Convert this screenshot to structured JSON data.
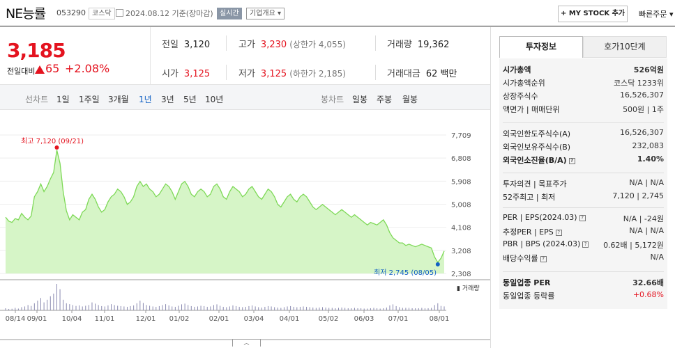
{
  "header": {
    "name": "NE능률",
    "code": "053290",
    "market_tag": "코스닥",
    "date": "2024.08.12",
    "basis": "기준(장마감)",
    "realtime_label": "실시간",
    "company_btn": "기업개요",
    "mystock_btn": "+ MY STOCK 추가",
    "quick_order": "빠른주문"
  },
  "price": {
    "current": "3,185",
    "change_label": "전일대비",
    "change": "65",
    "change_pct": "+2.08%"
  },
  "summary": {
    "prev_label": "전일",
    "prev": "3,120",
    "high_label": "고가",
    "high": "3,230",
    "upper_limit": "(상한가 4,055)",
    "vol_label": "거래량",
    "vol": "19,362",
    "open_label": "시가",
    "open": "3,125",
    "low_label": "저가",
    "low": "3,125",
    "lower_limit": "(하한가 2,185)",
    "amt_label": "거래대금",
    "amt": "62 백만"
  },
  "periods": {
    "line_label": "선차트",
    "line": [
      "1일",
      "1주일",
      "3개월",
      "1년",
      "3년",
      "5년",
      "10년"
    ],
    "active": "1년",
    "candle_label": "봉차트",
    "candle": [
      "일봉",
      "주봉",
      "월봉"
    ]
  },
  "colors": {
    "red": "#e4131f",
    "blue": "#1261c4",
    "chart_line": "#7ed957",
    "chart_fill": "#d6f5c7"
  },
  "chart_data": {
    "type": "area",
    "ylim": [
      2308,
      7709
    ],
    "yticks": [
      "7,709",
      "6,808",
      "5,908",
      "5,008",
      "4,108",
      "3,208",
      "2,308"
    ],
    "xticks": [
      "08/14",
      "09/01",
      "10/04",
      "11/01",
      "12/01",
      "01/02",
      "02/01",
      "03/04",
      "04/01",
      "05/02",
      "06/03",
      "07/01",
      "08/01"
    ],
    "max_label": "최고 7,120 (09/21)",
    "min_label": "최저 2,745 (08/05)",
    "volume_label": "거래량",
    "series": [
      {
        "values": [
          4500,
          4350,
          4300,
          4450,
          4400,
          4650,
          4500,
          4400,
          4550,
          5300,
          5500,
          5800,
          5500,
          5700,
          6000,
          6250,
          7120,
          6600,
          5500,
          4750,
          4400,
          4600,
          4500,
          4400,
          4700,
          4800,
          5200,
          5400,
          5200,
          4900,
          4700,
          4800,
          5100,
          5300,
          5400,
          5600,
          5500,
          5300,
          5000,
          5100,
          5300,
          5700,
          5900,
          5700,
          5800,
          5600,
          5500,
          5300,
          5400,
          5600,
          5800,
          5700,
          5500,
          5200,
          5500,
          5800,
          5900,
          5700,
          5400,
          5300,
          5500,
          5600,
          5500,
          5300,
          5400,
          5700,
          5800,
          5600,
          5300,
          5200,
          5500,
          5700,
          5600,
          5500,
          5300,
          5400,
          5600,
          5700,
          5500,
          5300,
          5200,
          5400,
          5600,
          5500,
          5300,
          5000,
          4900,
          5100,
          5300,
          5400,
          5200,
          5100,
          5300,
          5400,
          5300,
          5100,
          4900,
          4800,
          4900,
          5000,
          4900,
          4800,
          4700,
          4600,
          4700,
          4800,
          4700,
          4600,
          4500,
          4600,
          4500,
          4400,
          4300,
          4200,
          4300,
          4250,
          4200,
          4300,
          4400,
          4200,
          3900,
          3700,
          3600,
          3500,
          3500,
          3400,
          3450,
          3400,
          3350,
          3400,
          3450,
          3400,
          3350,
          3300,
          2950,
          2745,
          2900,
          3185
        ]
      }
    ],
    "volume": [
      12,
      8,
      9,
      14,
      10,
      18,
      22,
      30,
      25,
      40,
      55,
      70,
      45,
      60,
      80,
      95,
      150,
      120,
      60,
      40,
      35,
      30,
      25,
      28,
      22,
      26,
      30,
      45,
      38,
      30,
      24,
      22,
      28,
      35,
      30,
      26,
      24,
      22,
      20,
      24,
      28,
      40,
      55,
      42,
      30,
      26,
      22,
      20,
      24,
      30,
      35,
      28,
      22,
      20,
      26,
      34,
      38,
      30,
      24,
      20,
      22,
      26,
      24,
      20,
      22,
      30,
      34,
      26,
      20,
      18,
      22,
      28,
      24,
      20,
      18,
      20,
      24,
      28,
      22,
      18,
      16,
      20,
      24,
      22,
      18,
      16,
      14,
      18,
      22,
      24,
      20,
      18,
      20,
      22,
      20,
      18,
      16,
      14,
      16,
      18,
      16,
      14,
      14,
      12,
      14,
      16,
      14,
      12,
      12,
      14,
      12,
      12,
      10,
      10,
      12,
      14,
      12,
      10,
      12,
      16,
      28,
      34,
      24,
      18,
      14,
      14,
      14,
      12,
      12,
      12,
      14,
      12,
      12,
      14,
      30,
      40,
      25,
      22
    ]
  },
  "invest": {
    "tab_active": "투자정보",
    "tab_idle": "호가10단계",
    "rows1": [
      {
        "k": "시가총액",
        "v": "526억원",
        "bold": true
      },
      {
        "k": "시가총액순위",
        "v": "코스닥 1233위"
      },
      {
        "k": "상장주식수",
        "v": "16,526,307"
      },
      {
        "k": "액면가 | 매매단위",
        "v": "500원 | 1주"
      }
    ],
    "rows2": [
      {
        "k": "외국인한도주식수(A)",
        "v": "16,526,307"
      },
      {
        "k": "외국인보유주식수(B)",
        "v": "232,083"
      },
      {
        "k": "외국인소진율(B/A)",
        "v": "1.40%",
        "bold": true
      }
    ],
    "rows3": [
      {
        "k": "투자의견 | 목표주가",
        "v": "N/A | N/A"
      },
      {
        "k": "52주최고 | 최저",
        "v": "7,120 | 2,745"
      }
    ],
    "rows4": [
      {
        "k": "PER | EPS(2024.03)",
        "v": "N/A | -24원"
      },
      {
        "k": "추정PER | EPS",
        "v": "N/A | N/A"
      },
      {
        "k": "PBR | BPS (2024.03)",
        "v": "0.62배 | 5,172원"
      },
      {
        "k": "배당수익률",
        "v": "N/A"
      }
    ],
    "rows5": [
      {
        "k": "동일업종 PER",
        "v": "32.66배",
        "bold": true
      },
      {
        "k": "동일업종 등락률",
        "v": "+0.68%",
        "red": true
      }
    ]
  }
}
